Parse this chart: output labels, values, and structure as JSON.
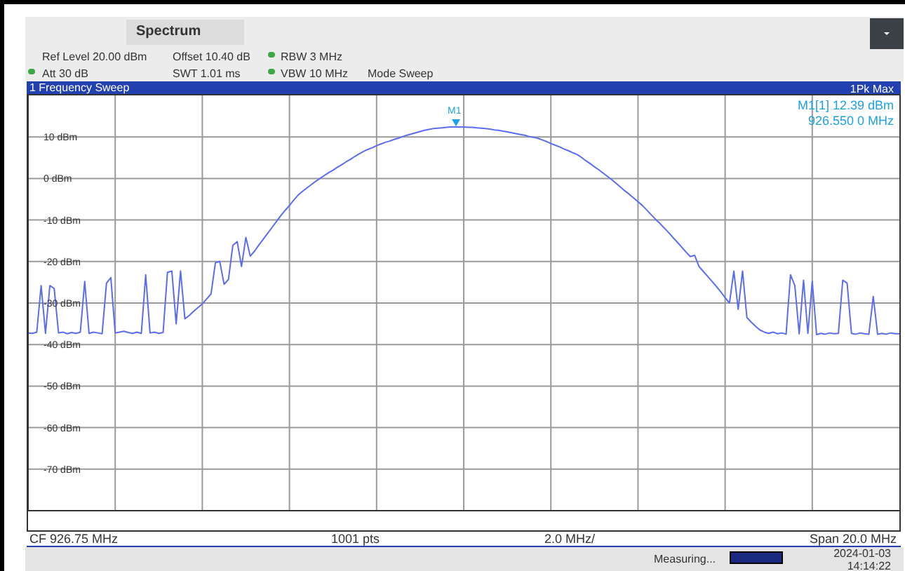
{
  "chart_data": {
    "type": "line",
    "title": "Spectrum",
    "subtitle": "1 Frequency Sweep",
    "categories": [
      null,
      null,
      null,
      null,
      null,
      null,
      null,
      null,
      null,
      null,
      null,
      null,
      null,
      null,
      null,
      null,
      null,
      null,
      null,
      null,
      null,
      null,
      null,
      null,
      null,
      null,
      null,
      null,
      null,
      null,
      null,
      null,
      null,
      null,
      null,
      null,
      null,
      null,
      null,
      null,
      null,
      null,
      null,
      null,
      null,
      null,
      null,
      null,
      null,
      null,
      null,
      null,
      null,
      null,
      null,
      null,
      null,
      null,
      null,
      null,
      null,
      null,
      null,
      null,
      null,
      null,
      null,
      null,
      null,
      null,
      null,
      null,
      null,
      null,
      null,
      null,
      null,
      null,
      null,
      null,
      null,
      null,
      null,
      null,
      null,
      null,
      null,
      null,
      null,
      null,
      null,
      null,
      null,
      null,
      null,
      null,
      null,
      null,
      null,
      null,
      null,
      null,
      null,
      null,
      null,
      null,
      null,
      null,
      null,
      null,
      null,
      null,
      null,
      null,
      null,
      null,
      null,
      null,
      null,
      null,
      null,
      null,
      null,
      null,
      null,
      null,
      null,
      null,
      null,
      null,
      null,
      null,
      null,
      null,
      null,
      null,
      null,
      null,
      null,
      null,
      null,
      null,
      null,
      null,
      null,
      null,
      null,
      null,
      null,
      null,
      null,
      null,
      null,
      null,
      null,
      null,
      null,
      null,
      null,
      null,
      null,
      null,
      null,
      null,
      null,
      null,
      null,
      null,
      null,
      null,
      null,
      null,
      null,
      null,
      null,
      null,
      null,
      null,
      null,
      null,
      null,
      null,
      null,
      null,
      null,
      null,
      null,
      null,
      null,
      null,
      null,
      null,
      null,
      null,
      null,
      null,
      null,
      null,
      null,
      null,
      null
    ],
    "series": [
      {
        "color": "#5b6cf2",
        "values": [
          -37.2,
          -37.3,
          -37.0,
          -25.8,
          -37.3,
          -25.8,
          -26.5,
          -37.2,
          -37.0,
          -37.4,
          -37.1,
          -37.3,
          -37.0,
          -24.8,
          -37.3,
          -37.0,
          -37.2,
          -37.4,
          -25.2,
          -23.9,
          -37.2,
          -37.0,
          -36.8,
          -37.1,
          -37.3,
          -37.0,
          -37.3,
          -23.2,
          -37.2,
          -37.0,
          -37.3,
          -37.1,
          -22.6,
          -22.3,
          -35.0,
          -22.3,
          -33.8,
          -33.0,
          -32.0,
          -31.1,
          -30.2,
          -29.0,
          -27.8,
          -20.3,
          -20.0,
          -25.5,
          -24.3,
          -16.1,
          -15.2,
          -21.2,
          -14.2,
          -18.7,
          -17.5,
          -16.0,
          -14.6,
          -13.2,
          -11.8,
          -10.4,
          -9.0,
          -7.7,
          -6.5,
          -5.2,
          -4.0,
          -3.1,
          -2.3,
          -1.5,
          -0.7,
          0.0,
          0.7,
          1.4,
          2.0,
          2.7,
          3.3,
          4.0,
          4.6,
          5.3,
          5.9,
          6.5,
          7.0,
          7.4,
          7.9,
          8.3,
          8.7,
          9.0,
          9.4,
          9.7,
          10.1,
          10.4,
          10.7,
          11.0,
          11.3,
          11.6,
          11.8,
          12.0,
          12.1,
          12.2,
          12.3,
          12.4,
          12.4,
          12.4,
          12.4,
          12.3,
          12.3,
          12.2,
          12.1,
          12.0,
          11.9,
          11.7,
          11.6,
          11.4,
          11.2,
          11.0,
          10.8,
          10.6,
          10.4,
          10.1,
          9.9,
          9.7,
          9.3,
          8.9,
          8.4,
          8.0,
          7.6,
          7.1,
          6.7,
          6.2,
          5.8,
          5.1,
          4.3,
          3.6,
          2.8,
          2.1,
          1.3,
          0.5,
          -0.3,
          -1.2,
          -2.1,
          -3.0,
          -3.8,
          -4.7,
          -5.6,
          -6.5,
          -7.6,
          -8.7,
          -9.8,
          -10.8,
          -11.9,
          -13.0,
          -14.2,
          -15.3,
          -16.5,
          -17.7,
          -18.8,
          -18.5,
          -21.2,
          -22.4,
          -23.6,
          -24.8,
          -26.0,
          -27.3,
          -28.7,
          -30.0,
          -22.3,
          -31.5,
          -22.3,
          -33.5,
          -34.6,
          -35.6,
          -36.5,
          -37.0,
          -37.3,
          -37.0,
          -37.4,
          -37.2,
          -37.5,
          -23.2,
          -25.8,
          -37.4,
          -24.5,
          -37.3,
          -24.8,
          -37.6,
          -37.3,
          -37.5,
          -37.2,
          -37.4,
          -37.3,
          -24.5,
          -25.2,
          -37.3,
          -37.5,
          -37.2,
          -37.4,
          -37.5,
          -28.4,
          -37.5,
          -37.3,
          -37.5,
          -37.2,
          -37.4,
          -37.4
        ]
      }
    ],
    "ylim": [
      -80,
      20
    ],
    "yticks": [
      {
        "value": -70,
        "label": "-70 dBm"
      },
      {
        "value": -60,
        "label": "-60 dBm"
      },
      {
        "value": -50,
        "label": "-50 dBm"
      },
      {
        "value": -40,
        "label": "-40 dBm"
      },
      {
        "value": -30,
        "label": "-30 dBm"
      },
      {
        "value": -20,
        "label": "-20 dBm"
      },
      {
        "value": -10,
        "label": "-10 dBm"
      },
      {
        "value": 0,
        "label": "0 dBm"
      },
      {
        "value": 10,
        "label": "10 dBm"
      }
    ],
    "grid": true,
    "annotations": [
      "Ref Level 20.00 dBm",
      "Offset 10.40 dB",
      "RBW 3 MHz",
      "Att 30 dB",
      "SWT 1.01 ms",
      "VBW 10 MHz",
      "Mode Sweep",
      "1Pk Max",
      "M1",
      "M1[1] 12.39 dBm",
      "926.550 0 MHz",
      "CF 926.75 MHz",
      "1001 pts",
      "2.0 MHz/",
      "Span 20.0 MHz",
      "Measuring...",
      "2024-01-03",
      "14:14:22"
    ]
  }
}
